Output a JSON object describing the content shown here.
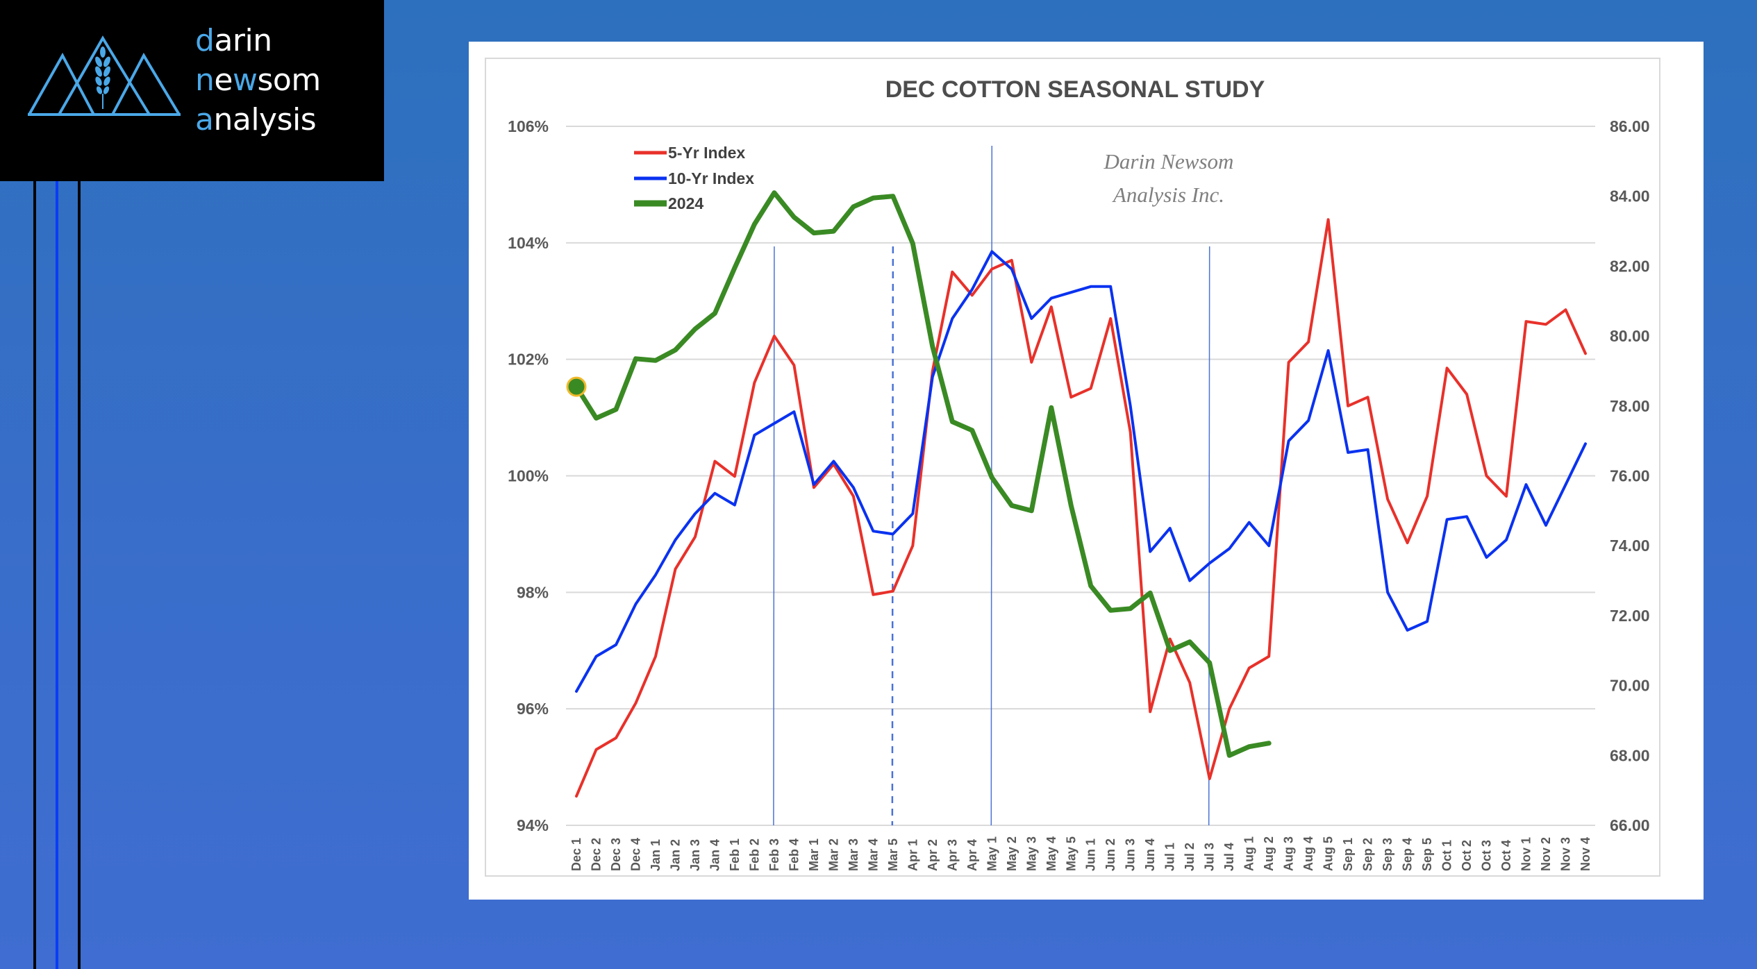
{
  "brand": {
    "line1": {
      "accent": "d",
      "rest": "arin"
    },
    "line2": {
      "accent": "n",
      "mid": "e",
      "accent2": "w",
      "rest": "som"
    },
    "line3": {
      "accent": "a",
      "rest": "nalysis"
    },
    "logo_icon": "mountains-wheat-icon",
    "accent_color": "#4aa8e8"
  },
  "chart_data": {
    "type": "line",
    "title": "DEC COTTON SEASONAL STUDY",
    "watermark": [
      "Darin Newsom",
      "Analysis Inc."
    ],
    "xlabel": "",
    "ylabel": "",
    "y_left": {
      "min": 94,
      "max": 106,
      "step": 2,
      "format": "percent",
      "ticks": [
        "94%",
        "96%",
        "98%",
        "100%",
        "102%",
        "104%",
        "106%"
      ]
    },
    "y_right": {
      "min": 66,
      "max": 86,
      "step": 2,
      "ticks": [
        "66.00",
        "68.00",
        "70.00",
        "72.00",
        "74.00",
        "76.00",
        "78.00",
        "80.00",
        "82.00",
        "84.00",
        "86.00"
      ]
    },
    "grid": true,
    "legend_position": "top-left",
    "categories": [
      "Dec 1",
      "Dec 2",
      "Dec 3",
      "Dec 4",
      "Jan 1",
      "Jan 2",
      "Jan 3",
      "Jan 4",
      "Feb 1",
      "Feb 2",
      "Feb 3",
      "Feb 4",
      "Mar 1",
      "Mar 2",
      "Mar 3",
      "Mar 4",
      "Mar 5",
      "Apr 1",
      "Apr 2",
      "Apr 3",
      "Apr 4",
      "May 1",
      "May 2",
      "May 3",
      "May 4",
      "May 5",
      "Jun 1",
      "Jun 2",
      "Jun 3",
      "Jun 4",
      "Jul 1",
      "Jul 2",
      "Jul 3",
      "Jul 4",
      "Aug 1",
      "Aug 2",
      "Aug 3",
      "Aug 4",
      "Aug 5",
      "Sep 1",
      "Sep 2",
      "Sep 3",
      "Sep 4",
      "Sep 5",
      "Oct 1",
      "Oct 2",
      "Oct 3",
      "Oct 4",
      "Nov 1",
      "Nov 2",
      "Nov 3",
      "Nov 4"
    ],
    "series": [
      {
        "name": "5-Yr Index",
        "axis": "left",
        "color": "#e8312a",
        "values": [
          94.5,
          95.3,
          95.5,
          96.1,
          96.9,
          98.4,
          98.95,
          100.25,
          99.99,
          101.6,
          102.4,
          101.9,
          99.8,
          100.2,
          99.65,
          97.96,
          98.02,
          98.8,
          101.8,
          103.5,
          103.1,
          103.55,
          103.7,
          101.95,
          102.9,
          101.35,
          101.5,
          102.7,
          100.75,
          95.95,
          97.2,
          96.45,
          94.8,
          96.0,
          96.7,
          96.9,
          101.95,
          102.3,
          104.4,
          101.2,
          101.35,
          99.6,
          98.85,
          99.65,
          101.85,
          101.4,
          100.0,
          99.65,
          102.65,
          102.6,
          102.85,
          102.1
        ]
      },
      {
        "name": "10-Yr Index",
        "axis": "left",
        "color": "#0a32f0",
        "values": [
          96.3,
          96.9,
          97.1,
          97.8,
          98.3,
          98.9,
          99.35,
          99.7,
          99.5,
          100.7,
          100.9,
          101.1,
          99.85,
          100.25,
          99.8,
          99.05,
          99.0,
          99.35,
          101.7,
          102.7,
          103.2,
          103.85,
          103.55,
          102.7,
          103.05,
          103.15,
          103.25,
          103.25,
          101.2,
          98.7,
          99.1,
          98.2,
          98.5,
          98.75,
          99.2,
          98.8,
          100.6,
          100.95,
          102.15,
          100.4,
          100.45,
          98.0,
          97.35,
          97.5,
          99.25,
          99.3,
          98.6,
          98.9,
          99.85,
          99.15,
          99.85,
          100.55
        ]
      },
      {
        "name": "2024",
        "axis": "right",
        "color": "#3a8a24",
        "marker_first": {
          "fill": "#3a8a24",
          "stroke": "#f0b92a"
        },
        "values": [
          78.55,
          77.65,
          77.9,
          79.35,
          79.3,
          79.6,
          80.2,
          80.65,
          81.95,
          83.2,
          84.1,
          83.4,
          82.95,
          83.0,
          83.7,
          83.95,
          84.0,
          82.65,
          79.7,
          77.55,
          77.3,
          75.95,
          75.15,
          75.0,
          77.95,
          75.15,
          72.85,
          72.15,
          72.2,
          72.65,
          71.0,
          71.25,
          70.65,
          68.0,
          68.25,
          68.35
        ]
      }
    ],
    "reference_lines": [
      {
        "category": "Feb 3",
        "style": "solid"
      },
      {
        "category": "Mar 5",
        "style": "dashed"
      },
      {
        "category": "May 1",
        "style": "solid"
      },
      {
        "category": "Jul 3",
        "style": "solid"
      }
    ]
  }
}
